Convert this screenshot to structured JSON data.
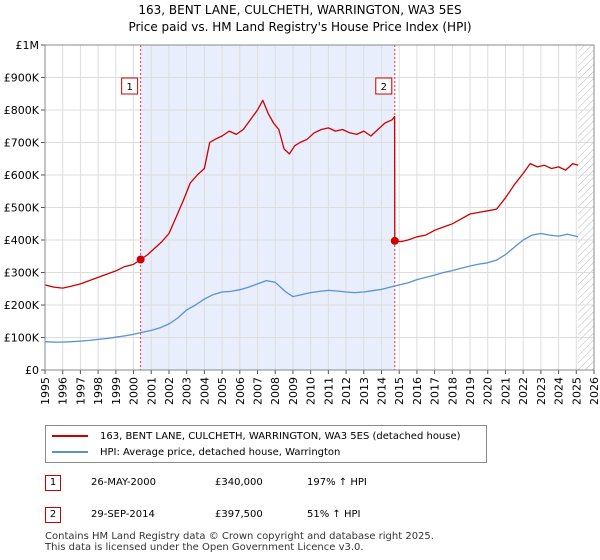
{
  "header": {
    "title": "163, BENT LANE, CULCHETH, WARRINGTON, WA3 5ES",
    "subtitle": "Price paid vs. HM Land Registry's House Price Index (HPI)"
  },
  "chart_data": {
    "type": "line",
    "title": "163, BENT LANE, CULCHETH, WARRINGTON, WA3 5ES",
    "subtitle": "Price paid vs. HM Land Registry's House Price Index (HPI)",
    "xlim": [
      1995,
      2026
    ],
    "ylim": [
      0,
      1000000
    ],
    "x_ticks": [
      1995,
      1996,
      1997,
      1998,
      1999,
      2000,
      2001,
      2002,
      2003,
      2004,
      2005,
      2006,
      2007,
      2008,
      2009,
      2010,
      2011,
      2012,
      2013,
      2014,
      2015,
      2016,
      2017,
      2018,
      2019,
      2020,
      2021,
      2022,
      2023,
      2024,
      2025,
      2026
    ],
    "x_tick_labels": [
      "1995",
      "1996",
      "1997",
      "1998",
      "1999",
      "2000",
      "2001",
      "2002",
      "2003",
      "2004",
      "2005",
      "2006",
      "2007",
      "2008",
      "2009",
      "2010",
      "2011",
      "2012",
      "2013",
      "2014",
      "2015",
      "2016",
      "2017",
      "2018",
      "2019",
      "2020",
      "2021",
      "2022",
      "2023",
      "2024",
      "2025",
      "2026"
    ],
    "y_ticks": [
      0,
      100000,
      200000,
      300000,
      400000,
      500000,
      600000,
      700000,
      800000,
      900000,
      1000000
    ],
    "y_tick_labels": [
      "£0",
      "£100K",
      "£200K",
      "£300K",
      "£400K",
      "£500K",
      "£600K",
      "£700K",
      "£800K",
      "£900K",
      "£1M"
    ],
    "grid": true,
    "shaded_range": [
      2000.4,
      2014.75
    ],
    "hatched_after": 2025.1,
    "series": [
      {
        "name": "163, BENT LANE, CULCHETH, WARRINGTON, WA3 5ES (detached house)",
        "color": "#cc0000",
        "x": [
          1995,
          1995.5,
          1996,
          1996.5,
          1997,
          1997.5,
          1998,
          1998.5,
          1999,
          1999.5,
          2000,
          2000.4,
          2000.8,
          2001.2,
          2001.6,
          2002,
          2002.4,
          2002.8,
          2003.2,
          2003.6,
          2004,
          2004.3,
          2004.6,
          2005,
          2005.4,
          2005.8,
          2006.2,
          2006.6,
          2007,
          2007.3,
          2007.6,
          2007.9,
          2008.2,
          2008.5,
          2008.8,
          2009.1,
          2009.4,
          2009.8,
          2010.2,
          2010.6,
          2011,
          2011.4,
          2011.8,
          2012.2,
          2012.6,
          2013,
          2013.4,
          2013.8,
          2014.2,
          2014.6,
          2014.74,
          2014.75,
          2015.1,
          2015.5,
          2016,
          2016.5,
          2017,
          2017.5,
          2018,
          2018.5,
          2019,
          2019.5,
          2020,
          2020.5,
          2021,
          2021.5,
          2022,
          2022.4,
          2022.8,
          2023.2,
          2023.6,
          2024,
          2024.4,
          2024.8,
          2025.1
        ],
        "y": [
          262000,
          255000,
          252000,
          258000,
          265000,
          275000,
          285000,
          295000,
          305000,
          318000,
          325000,
          340000,
          355000,
          375000,
          395000,
          420000,
          470000,
          520000,
          575000,
          600000,
          620000,
          700000,
          710000,
          720000,
          735000,
          725000,
          740000,
          770000,
          800000,
          830000,
          790000,
          760000,
          740000,
          680000,
          665000,
          690000,
          700000,
          710000,
          730000,
          740000,
          745000,
          735000,
          740000,
          730000,
          725000,
          735000,
          720000,
          740000,
          760000,
          770000,
          780000,
          397500,
          395000,
          400000,
          410000,
          415000,
          430000,
          440000,
          450000,
          465000,
          480000,
          485000,
          490000,
          495000,
          530000,
          570000,
          605000,
          635000,
          625000,
          630000,
          620000,
          625000,
          615000,
          635000,
          630000
        ]
      },
      {
        "name": "HPI: Average price, detached house, Warrington",
        "color": "#5b8fd6",
        "x": [
          1995,
          1995.5,
          1996,
          1996.5,
          1997,
          1997.5,
          1998,
          1998.5,
          1999,
          1999.5,
          2000,
          2000.5,
          2001,
          2001.5,
          2002,
          2002.5,
          2003,
          2003.5,
          2004,
          2004.5,
          2005,
          2005.5,
          2006,
          2006.5,
          2007,
          2007.5,
          2008,
          2008.3,
          2008.6,
          2009,
          2009.5,
          2010,
          2010.5,
          2011,
          2011.5,
          2012,
          2012.5,
          2013,
          2013.5,
          2014,
          2014.5,
          2015,
          2015.5,
          2016,
          2016.5,
          2017,
          2017.5,
          2018,
          2018.5,
          2019,
          2019.5,
          2020,
          2020.5,
          2021,
          2021.5,
          2022,
          2022.5,
          2023,
          2023.5,
          2024,
          2024.5,
          2025.1
        ],
        "y": [
          87000,
          86000,
          86000,
          87000,
          89000,
          91000,
          94000,
          97000,
          101000,
          105000,
          110000,
          116000,
          122000,
          130000,
          142000,
          160000,
          185000,
          200000,
          218000,
          232000,
          240000,
          242000,
          247000,
          255000,
          265000,
          275000,
          270000,
          255000,
          240000,
          226000,
          232000,
          238000,
          242000,
          245000,
          243000,
          240000,
          238000,
          240000,
          244000,
          248000,
          255000,
          262000,
          268000,
          278000,
          285000,
          292000,
          300000,
          306000,
          313000,
          320000,
          326000,
          330000,
          338000,
          355000,
          378000,
          400000,
          415000,
          420000,
          415000,
          412000,
          418000,
          410000
        ]
      }
    ],
    "annotations": [
      {
        "label": "1",
        "x": 2000.4,
        "y": 340000
      },
      {
        "label": "2",
        "x": 2014.75,
        "y": 397500
      }
    ]
  },
  "legend": {
    "items": [
      {
        "label": "163, BENT LANE, CULCHETH, WARRINGTON, WA3 5ES (detached house)",
        "color": "#cc0000"
      },
      {
        "label": "HPI: Average price, detached house, Warrington",
        "color": "#5b8fd6"
      }
    ]
  },
  "transactions": [
    {
      "num": "1",
      "date": "26-MAY-2000",
      "price": "£340,000",
      "hpi": "197% ↑ HPI"
    },
    {
      "num": "2",
      "date": "29-SEP-2014",
      "price": "£397,500",
      "hpi": "51% ↑ HPI"
    }
  ],
  "footer": {
    "line1": "Contains HM Land Registry data © Crown copyright and database right 2025.",
    "line2": "This data is licensed under the Open Government Licence v3.0."
  }
}
